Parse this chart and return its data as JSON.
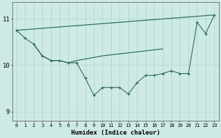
{
  "line1_x": [
    0,
    1,
    2,
    3,
    4,
    5,
    6,
    7,
    8,
    9,
    10,
    11,
    12,
    13,
    14,
    15,
    16,
    17,
    18,
    19,
    20,
    21,
    22,
    23
  ],
  "line1_y": [
    10.75,
    10.58,
    10.45,
    10.2,
    10.1,
    10.1,
    10.05,
    10.05,
    9.72,
    9.35,
    9.52,
    9.52,
    9.52,
    9.38,
    9.62,
    9.78,
    9.78,
    9.82,
    9.88,
    9.82,
    9.82,
    10.92,
    10.68,
    11.08
  ],
  "line2_x": [
    0,
    23
  ],
  "line2_y": [
    10.75,
    11.08
  ],
  "line3_x": [
    2,
    3,
    4,
    5,
    6,
    7,
    10,
    17
  ],
  "line3_y": [
    10.45,
    10.2,
    10.1,
    10.1,
    10.05,
    10.1,
    10.2,
    10.35
  ],
  "bg_color": "#ceeae6",
  "grid_color": "#b2d4d0",
  "line_color": "#2e6b5e",
  "xlabel": "Humidex (Indice chaleur)",
  "ylim": [
    8.8,
    11.35
  ],
  "xlim": [
    -0.5,
    23.5
  ],
  "yticks": [
    9,
    10,
    11
  ],
  "xticks": [
    0,
    1,
    2,
    3,
    4,
    5,
    6,
    7,
    8,
    9,
    10,
    11,
    12,
    13,
    14,
    15,
    16,
    17,
    18,
    19,
    20,
    21,
    22,
    23
  ]
}
